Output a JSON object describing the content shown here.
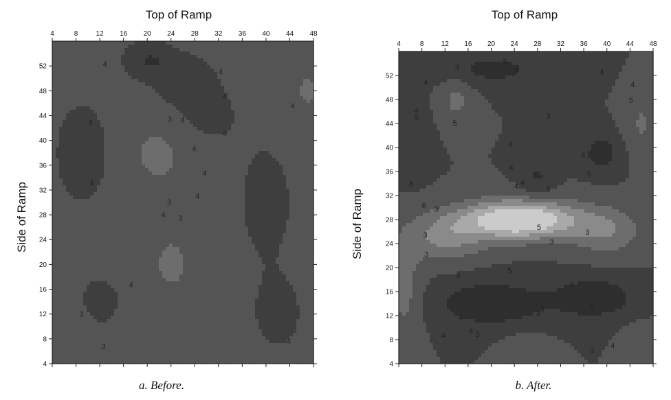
{
  "chart_data": [
    {
      "type": "heatmap",
      "caption": "a. Before.",
      "title": "Top of Ramp",
      "xlabel": "Top of Ramp",
      "ylabel": "Side of Ramp",
      "x_ticks": [
        "4",
        "8",
        "12",
        "16",
        "20",
        "24",
        "28",
        "32",
        "36",
        "40",
        "44",
        "48"
      ],
      "y_ticks": [
        "4",
        "8",
        "12",
        "16",
        "20",
        "24",
        "28",
        "32",
        "36",
        "40",
        "44",
        "48",
        "52"
      ],
      "xlim": [
        4,
        48
      ],
      "ylim": [
        4,
        56
      ],
      "colorscale": [
        "#2e2e2e",
        "#3e3e3e",
        "#545454",
        "#6d6d6d",
        "#8a8a8a",
        "#a9a9a9",
        "#cbcbcb"
      ],
      "contour_levels": [
        3,
        4,
        5,
        6
      ],
      "contour_labels": [
        "3",
        "3",
        "3",
        "3",
        "4",
        "4",
        "4",
        "4",
        "4",
        "4",
        "4",
        "4",
        "4",
        "4",
        "4",
        "4",
        "3",
        "3",
        "4"
      ]
    },
    {
      "type": "heatmap",
      "caption": "b. After.",
      "title": "Top of Ramp",
      "xlabel": "Top of Ramp",
      "ylabel": "Side of Ramp",
      "x_ticks": [
        "4",
        "8",
        "12",
        "16",
        "20",
        "24",
        "28",
        "32",
        "36",
        "40",
        "44",
        "48"
      ],
      "y_ticks": [
        "4",
        "8",
        "12",
        "16",
        "20",
        "24",
        "28",
        "32",
        "36",
        "40",
        "44",
        "48",
        "52"
      ],
      "xlim": [
        4,
        48
      ],
      "ylim": [
        4,
        56
      ],
      "colorscale": [
        "#2e2e2e",
        "#3e3e3e",
        "#545454",
        "#6d6d6d",
        "#8a8a8a",
        "#a9a9a9",
        "#cbcbcb"
      ],
      "contour_levels": [
        3,
        4,
        5,
        6
      ],
      "contour_labels": [
        "3",
        "3",
        "4",
        "4",
        "4",
        "4",
        "3",
        "3",
        "4",
        "4",
        "4",
        "3",
        "5",
        "5",
        "5",
        "6",
        "6",
        "6",
        "5",
        "5",
        "5",
        "5",
        "5",
        "4",
        "4",
        "4",
        "3",
        "3",
        "3",
        "3",
        "3",
        "3",
        "4",
        "4",
        "4",
        "3",
        "5",
        "4"
      ]
    }
  ]
}
